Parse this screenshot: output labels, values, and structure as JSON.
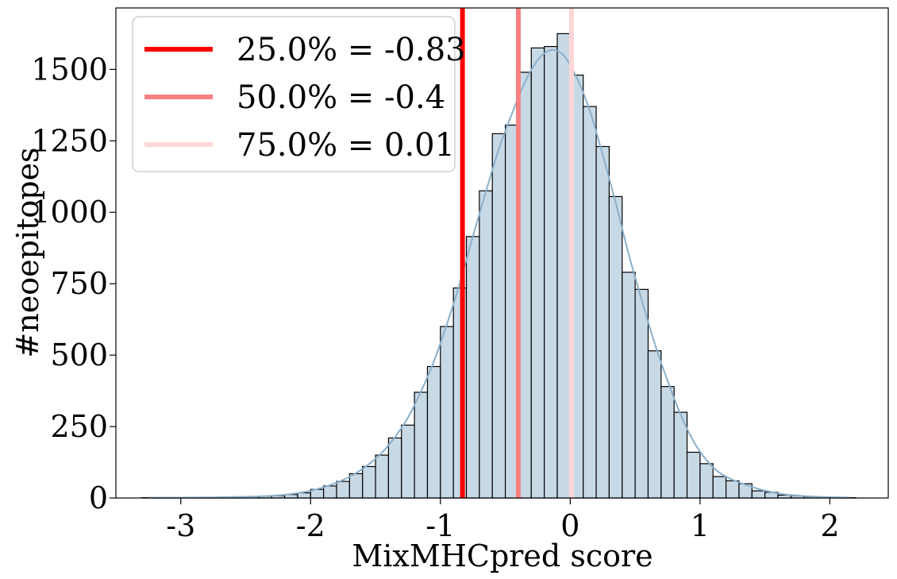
{
  "chart_data": {
    "type": "histogram",
    "title": "",
    "xlabel": "MixMHCpred score",
    "ylabel": "#neoepitopes",
    "xlim": [
      -3.5,
      2.45
    ],
    "ylim": [
      0,
      1715
    ],
    "x_ticks": [
      -3,
      -2,
      -1,
      0,
      1,
      2
    ],
    "x_tick_labels": [
      "-3",
      "-2",
      "-1",
      "0",
      "1",
      "2"
    ],
    "y_ticks": [
      0,
      250,
      500,
      750,
      1000,
      1250,
      1500
    ],
    "y_tick_labels": [
      "0",
      "250",
      "500",
      "750",
      "1000",
      "1250",
      "1500"
    ],
    "bin_start": -3.3,
    "bin_width": 0.1,
    "counts": [
      1,
      1,
      1,
      1,
      2,
      2,
      3,
      3,
      5,
      6,
      8,
      12,
      18,
      30,
      42,
      58,
      85,
      110,
      150,
      210,
      255,
      370,
      460,
      600,
      735,
      915,
      1075,
      1275,
      1305,
      1490,
      1575,
      1580,
      1625,
      1480,
      1370,
      1230,
      1055,
      790,
      730,
      515,
      390,
      300,
      160,
      120,
      75,
      60,
      50,
      25,
      20,
      10,
      8,
      5,
      3,
      2,
      1
    ],
    "bar_fill": "#c8d9e6",
    "bar_edge": "#000000",
    "kde_color": "#8ab0cb",
    "quantile_lines": [
      {
        "name": "25.0% = -0.83",
        "x": -0.83,
        "color": "#ff0000"
      },
      {
        "name": "50.0% = -0.4",
        "x": -0.4,
        "color": "#f88080"
      },
      {
        "name": "75.0% = 0.01",
        "x": 0.01,
        "color": "#ffd6d6"
      }
    ],
    "legend_position": "top-left",
    "grid": false
  }
}
